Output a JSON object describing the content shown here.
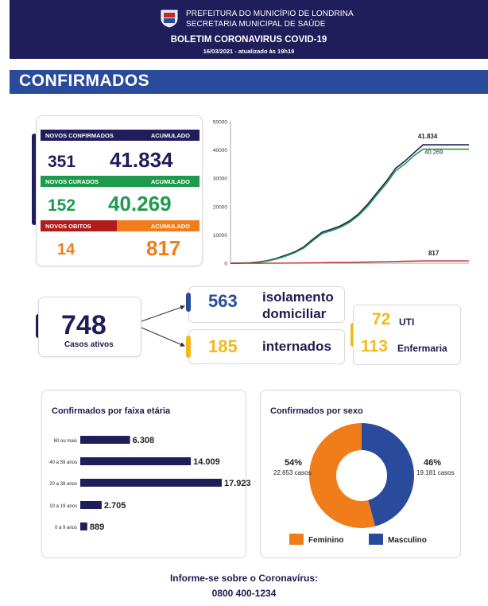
{
  "header": {
    "line1": "PREFEITURA DO MUNICÍPIO DE LONDRINA",
    "line2": "SECRETARIA MUNICIPAL DE SAÚDE",
    "title": "BOLETIM CORONAVIRUS COVID-19",
    "date": "16/03/2021 - atualizado às 19h19"
  },
  "section_title": "CONFIRMADOS",
  "stats": {
    "confirmed": {
      "label": "NOVOS CONFIRMADOS",
      "acc_label": "ACUMULADO",
      "new": "351",
      "acc": "41.834",
      "color": "#1f1d5a"
    },
    "cured": {
      "label": "NOVOS CURADOS",
      "acc_label": "ACUMULADO",
      "new": "152",
      "acc": "40.269",
      "color": "#1e9a4c"
    },
    "deaths": {
      "label": "NOVOS OBITOS",
      "acc_label": "ACUMULADO",
      "new": "14",
      "acc": "817",
      "color": "#f07d1a",
      "label_bg": "#b01c1c"
    }
  },
  "chart_data": [
    {
      "type": "line",
      "title": "",
      "xlabel": "",
      "ylabel": "",
      "ylim": [
        0,
        50000
      ],
      "yticks": [
        "0",
        "10000",
        "20000",
        "30000",
        "40000",
        "50000"
      ],
      "x": [
        0,
        2,
        4,
        6,
        8,
        10,
        12,
        14,
        16,
        18,
        20,
        22,
        24,
        26,
        28,
        30,
        32,
        34,
        36,
        38,
        40,
        42,
        44,
        46,
        48,
        50,
        52
      ],
      "series": [
        {
          "values": [
            0,
            50,
            150,
            400,
            900,
            1700,
            2800,
            4000,
            5800,
            8500,
            11000,
            12000,
            13200,
            15000,
            17500,
            21000,
            25000,
            29000,
            33500,
            36000,
            39000,
            41834,
            41834,
            41834,
            41834,
            41834,
            41834
          ],
          "color": "#1f1d5a"
        },
        {
          "values": [
            0,
            30,
            120,
            350,
            800,
            1500,
            2500,
            3700,
            5400,
            8000,
            10500,
            11500,
            12700,
            14500,
            17000,
            20300,
            24300,
            28200,
            32600,
            35000,
            38000,
            40269,
            40269,
            40269,
            40269,
            40269,
            40269
          ],
          "color": "#1e9a4c"
        },
        {
          "values": [
            0,
            0,
            5,
            10,
            20,
            40,
            60,
            90,
            120,
            160,
            200,
            240,
            280,
            320,
            360,
            420,
            480,
            540,
            620,
            700,
            760,
            817,
            817,
            817,
            817,
            817,
            817
          ],
          "color": "#c42525"
        }
      ],
      "end_labels": [
        "41.834",
        "40.269",
        "817"
      ]
    },
    {
      "type": "bar",
      "title": "Confirmados por faixa etária",
      "categories": [
        "60 ou mais",
        "40 a 59 anos",
        "20 a 39 anos",
        "10 a 19 anos",
        "0 a 9 anos"
      ],
      "values": [
        6308,
        14009,
        17923,
        2705,
        889
      ],
      "value_labels": [
        "6.308",
        "14.009",
        "17.923",
        "2.705",
        "889"
      ],
      "color": "#1f1d5a"
    },
    {
      "type": "pie",
      "title": "Confirmados por sexo",
      "categories": [
        "Feminino",
        "Masculino"
      ],
      "values": [
        22653,
        19181
      ],
      "percent_labels": [
        "54%",
        "46%"
      ],
      "count_labels": [
        "22.653 casos",
        "19.181 casos"
      ],
      "colors": [
        "#f07d1a",
        "#2a4b9b"
      ]
    }
  ],
  "active": {
    "value": "748",
    "label": "Casos ativos"
  },
  "isolation": {
    "value": "563",
    "label_line1": "isolamento",
    "label_line2": "domiciliar"
  },
  "hospital": {
    "value": "185",
    "label": "internados"
  },
  "uti": {
    "value": "72",
    "label": "UTI"
  },
  "ward": {
    "value": "113",
    "label": "Enfermaria"
  },
  "footer": {
    "line1": "Informe-se sobre o Coronavírus:",
    "line2": "0800 400-1234"
  }
}
